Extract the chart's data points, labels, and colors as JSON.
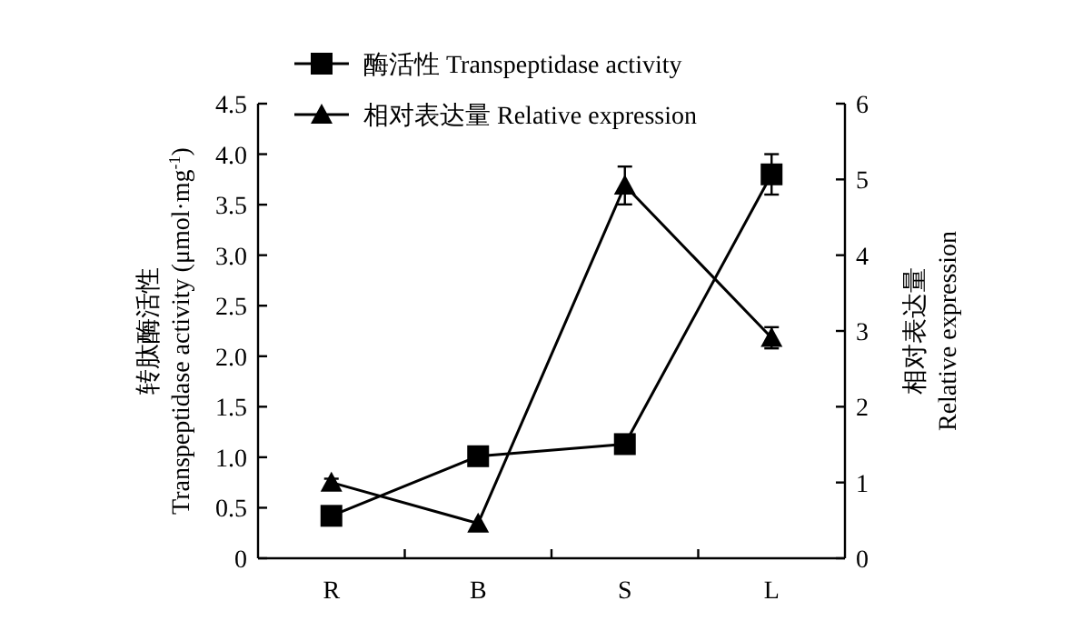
{
  "chart_data": {
    "type": "line",
    "categories": [
      "R",
      "B",
      "S",
      "L"
    ],
    "ylabel": "转肽酶活性\nTranspeptidase activity (μmol·mg$^{-1}$)",
    "y2label": "相对表达量\nRelative expression",
    "ylim": [
      0,
      4.5
    ],
    "yticks": [
      0,
      0.5,
      {
        "value": 1,
        "label": "1.0"
      },
      1.5,
      {
        "value": 2,
        "label": "2.0"
      },
      2.5,
      {
        "value": 3,
        "label": "3.0"
      },
      3.5,
      {
        "value": 4,
        "label": "4.0"
      },
      4.5
    ],
    "y2lim": [
      0,
      6
    ],
    "y2ticks": [
      0,
      1,
      2,
      3,
      4,
      5,
      6
    ],
    "legend": "top left",
    "grid": false,
    "line_style": "solid",
    "series": [
      {
        "name": "酶活性 Transpeptidase activity",
        "color": "#000000",
        "marker": "square",
        "values": [
          0.42,
          1.01,
          1.13,
          3.8
        ],
        "errors": [
          null,
          null,
          null,
          0.2
        ]
      },
      {
        "name": "相对表达量 Relative expression",
        "color": "#000000",
        "marker": "triangle",
        "axis": "y2",
        "values": [
          1.0,
          0.46,
          4.92,
          2.91
        ],
        "errors": [
          0.05,
          null,
          0.25,
          0.14
        ]
      }
    ]
  }
}
